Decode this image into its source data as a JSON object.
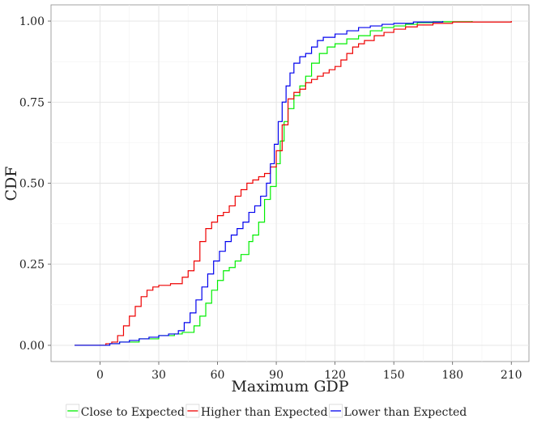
{
  "chart_data": {
    "type": "line",
    "title": "",
    "xlabel": "Maximum GDP",
    "ylabel": "CDF",
    "xlim": [
      -25,
      219
    ],
    "ylim": [
      -0.05,
      1.05
    ],
    "x_ticks": [
      0,
      30,
      60,
      90,
      120,
      150,
      180,
      210
    ],
    "x_tick_labels": [
      "0",
      "30",
      "60",
      "90",
      "120",
      "150",
      "180",
      "210"
    ],
    "y_ticks": [
      0,
      0.25,
      0.5,
      0.75,
      1.0
    ],
    "y_tick_labels": [
      "0.00",
      "0.25",
      "0.50",
      "0.75",
      "1.00"
    ],
    "grid": true,
    "legend_position": "bottom",
    "series": [
      {
        "name": "Close to Expected",
        "color": "#00ee00",
        "points": [
          [
            -13,
            0
          ],
          [
            0,
            0
          ],
          [
            5,
            0.005
          ],
          [
            10,
            0.01
          ],
          [
            20,
            0.02
          ],
          [
            30,
            0.03
          ],
          [
            38,
            0.035
          ],
          [
            42,
            0.04
          ],
          [
            48,
            0.06
          ],
          [
            51,
            0.09
          ],
          [
            54,
            0.13
          ],
          [
            57,
            0.17
          ],
          [
            60,
            0.2
          ],
          [
            63,
            0.23
          ],
          [
            66,
            0.24
          ],
          [
            69,
            0.26
          ],
          [
            72,
            0.28
          ],
          [
            76,
            0.32
          ],
          [
            78,
            0.34
          ],
          [
            81,
            0.38
          ],
          [
            84,
            0.45
          ],
          [
            87,
            0.49
          ],
          [
            90,
            0.56
          ],
          [
            92,
            0.63
          ],
          [
            94,
            0.69
          ],
          [
            96,
            0.73
          ],
          [
            99,
            0.77
          ],
          [
            102,
            0.8
          ],
          [
            105,
            0.83
          ],
          [
            108,
            0.87
          ],
          [
            112,
            0.9
          ],
          [
            116,
            0.92
          ],
          [
            120,
            0.93
          ],
          [
            126,
            0.945
          ],
          [
            132,
            0.955
          ],
          [
            138,
            0.97
          ],
          [
            144,
            0.98
          ],
          [
            150,
            0.985
          ],
          [
            156,
            0.99
          ],
          [
            162,
            0.995
          ],
          [
            170,
            0.998
          ],
          [
            190,
            1.0
          ]
        ]
      },
      {
        "name": "Higher than Expected",
        "color": "#ee0000",
        "points": [
          [
            -13,
            0
          ],
          [
            0,
            0
          ],
          [
            3,
            0.005
          ],
          [
            6,
            0.01
          ],
          [
            9,
            0.03
          ],
          [
            12,
            0.06
          ],
          [
            15,
            0.09
          ],
          [
            18,
            0.12
          ],
          [
            21,
            0.15
          ],
          [
            24,
            0.17
          ],
          [
            27,
            0.18
          ],
          [
            30,
            0.185
          ],
          [
            36,
            0.19
          ],
          [
            42,
            0.21
          ],
          [
            45,
            0.23
          ],
          [
            48,
            0.26
          ],
          [
            51,
            0.32
          ],
          [
            54,
            0.36
          ],
          [
            57,
            0.38
          ],
          [
            60,
            0.4
          ],
          [
            63,
            0.41
          ],
          [
            66,
            0.43
          ],
          [
            69,
            0.46
          ],
          [
            72,
            0.48
          ],
          [
            75,
            0.5
          ],
          [
            78,
            0.51
          ],
          [
            81,
            0.52
          ],
          [
            84,
            0.53
          ],
          [
            87,
            0.55
          ],
          [
            90,
            0.6
          ],
          [
            93,
            0.68
          ],
          [
            96,
            0.76
          ],
          [
            99,
            0.78
          ],
          [
            102,
            0.79
          ],
          [
            105,
            0.81
          ],
          [
            108,
            0.82
          ],
          [
            111,
            0.83
          ],
          [
            114,
            0.84
          ],
          [
            117,
            0.85
          ],
          [
            120,
            0.86
          ],
          [
            123,
            0.88
          ],
          [
            126,
            0.9
          ],
          [
            129,
            0.92
          ],
          [
            132,
            0.93
          ],
          [
            135,
            0.94
          ],
          [
            140,
            0.955
          ],
          [
            145,
            0.965
          ],
          [
            150,
            0.975
          ],
          [
            156,
            0.982
          ],
          [
            162,
            0.988
          ],
          [
            170,
            0.993
          ],
          [
            180,
            0.997
          ],
          [
            210,
            1.0
          ]
        ]
      },
      {
        "name": "Lower than Expected",
        "color": "#0000ee",
        "points": [
          [
            -13,
            0
          ],
          [
            0,
            0
          ],
          [
            5,
            0.005
          ],
          [
            10,
            0.01
          ],
          [
            15,
            0.015
          ],
          [
            20,
            0.02
          ],
          [
            25,
            0.025
          ],
          [
            30,
            0.03
          ],
          [
            35,
            0.035
          ],
          [
            40,
            0.045
          ],
          [
            43,
            0.07
          ],
          [
            46,
            0.1
          ],
          [
            49,
            0.14
          ],
          [
            52,
            0.18
          ],
          [
            55,
            0.22
          ],
          [
            58,
            0.26
          ],
          [
            61,
            0.29
          ],
          [
            64,
            0.32
          ],
          [
            67,
            0.34
          ],
          [
            70,
            0.36
          ],
          [
            73,
            0.38
          ],
          [
            76,
            0.41
          ],
          [
            79,
            0.43
          ],
          [
            82,
            0.46
          ],
          [
            85,
            0.5
          ],
          [
            87,
            0.56
          ],
          [
            89,
            0.62
          ],
          [
            91,
            0.69
          ],
          [
            93,
            0.75
          ],
          [
            95,
            0.8
          ],
          [
            97,
            0.84
          ],
          [
            99,
            0.87
          ],
          [
            102,
            0.89
          ],
          [
            105,
            0.9
          ],
          [
            108,
            0.92
          ],
          [
            111,
            0.94
          ],
          [
            114,
            0.95
          ],
          [
            120,
            0.96
          ],
          [
            126,
            0.97
          ],
          [
            132,
            0.98
          ],
          [
            138,
            0.985
          ],
          [
            144,
            0.99
          ],
          [
            150,
            0.993
          ],
          [
            160,
            0.997
          ],
          [
            175,
            1.0
          ]
        ]
      }
    ]
  }
}
